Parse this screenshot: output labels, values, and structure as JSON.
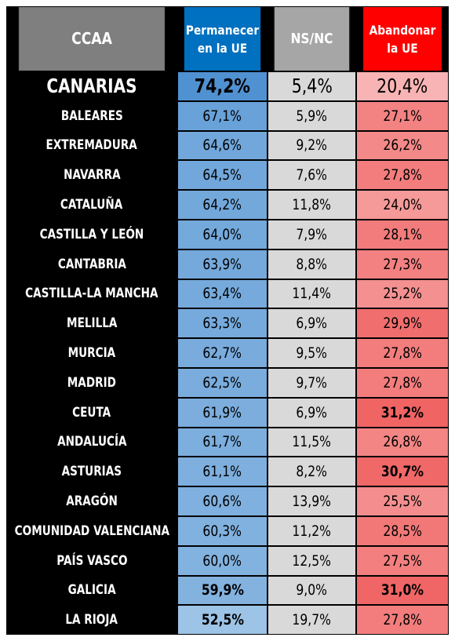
{
  "colors": {
    "header_ccaa": "#7f7f7f",
    "header_permanecer": "#0070c0",
    "header_nsnc": "#a6a6a6",
    "header_abandonar": "#ff0000",
    "name_column_bg": "#000000",
    "nsnc_cell_bg": "#d9d9d9"
  },
  "header": {
    "ccaa": "CCAA",
    "permanecer_line1": "Permanecer",
    "permanecer_line2": "en la UE",
    "nsnc": "NS/NC",
    "abandonar_line1": "Abandonar",
    "abandonar_line2": "la UE"
  },
  "chart_data": {
    "type": "table",
    "columns": [
      "CCAA",
      "Permanecer en la UE",
      "NS/NC",
      "Abandonar la UE"
    ],
    "rows": [
      {
        "ccaa": "CANARIAS",
        "permanecer": "74,2%",
        "nsnc": "5,4%",
        "abandonar": "20,4%",
        "perm_v": 74.2,
        "ab_v": 20.4,
        "bold_name": true,
        "bold_perm": true,
        "bold_ab": false
      },
      {
        "ccaa": "BALEARES",
        "permanecer": "67,1%",
        "nsnc": "5,9%",
        "abandonar": "27,1%",
        "perm_v": 67.1,
        "ab_v": 27.1,
        "bold_name": false,
        "bold_perm": false,
        "bold_ab": false
      },
      {
        "ccaa": "EXTREMADURA",
        "permanecer": "64,6%",
        "nsnc": "9,2%",
        "abandonar": "26,2%",
        "perm_v": 64.6,
        "ab_v": 26.2,
        "bold_name": false,
        "bold_perm": false,
        "bold_ab": false
      },
      {
        "ccaa": "NAVARRA",
        "permanecer": "64,5%",
        "nsnc": "7,6%",
        "abandonar": "27,8%",
        "perm_v": 64.5,
        "ab_v": 27.8,
        "bold_name": false,
        "bold_perm": false,
        "bold_ab": false
      },
      {
        "ccaa": "CATALUÑA",
        "permanecer": "64,2%",
        "nsnc": "11,8%",
        "abandonar": "24,0%",
        "perm_v": 64.2,
        "ab_v": 24.0,
        "bold_name": false,
        "bold_perm": false,
        "bold_ab": false
      },
      {
        "ccaa": "CASTILLA Y LEÓN",
        "permanecer": "64,0%",
        "nsnc": "7,9%",
        "abandonar": "28,1%",
        "perm_v": 64.0,
        "ab_v": 28.1,
        "bold_name": false,
        "bold_perm": false,
        "bold_ab": false
      },
      {
        "ccaa": "CANTABRIA",
        "permanecer": "63,9%",
        "nsnc": "8,8%",
        "abandonar": "27,3%",
        "perm_v": 63.9,
        "ab_v": 27.3,
        "bold_name": false,
        "bold_perm": false,
        "bold_ab": false
      },
      {
        "ccaa": "CASTILLA-LA MANCHA",
        "permanecer": "63,4%",
        "nsnc": "11,4%",
        "abandonar": "25,2%",
        "perm_v": 63.4,
        "ab_v": 25.2,
        "bold_name": false,
        "bold_perm": false,
        "bold_ab": false
      },
      {
        "ccaa": "MELILLA",
        "permanecer": "63,3%",
        "nsnc": "6,9%",
        "abandonar": "29,9%",
        "perm_v": 63.3,
        "ab_v": 29.9,
        "bold_name": false,
        "bold_perm": false,
        "bold_ab": false
      },
      {
        "ccaa": "MURCIA",
        "permanecer": "62,7%",
        "nsnc": "9,5%",
        "abandonar": "27,8%",
        "perm_v": 62.7,
        "ab_v": 27.8,
        "bold_name": false,
        "bold_perm": false,
        "bold_ab": false
      },
      {
        "ccaa": "MADRID",
        "permanecer": "62,5%",
        "nsnc": "9,7%",
        "abandonar": "27,8%",
        "perm_v": 62.5,
        "ab_v": 27.8,
        "bold_name": false,
        "bold_perm": false,
        "bold_ab": false
      },
      {
        "ccaa": "CEUTA",
        "permanecer": "61,9%",
        "nsnc": "6,9%",
        "abandonar": "31,2%",
        "perm_v": 61.9,
        "ab_v": 31.2,
        "bold_name": false,
        "bold_perm": false,
        "bold_ab": true
      },
      {
        "ccaa": "ANDALUCÍA",
        "permanecer": "61,7%",
        "nsnc": "11,5%",
        "abandonar": "26,8%",
        "perm_v": 61.7,
        "ab_v": 26.8,
        "bold_name": false,
        "bold_perm": false,
        "bold_ab": false
      },
      {
        "ccaa": "ASTURIAS",
        "permanecer": "61,1%",
        "nsnc": "8,2%",
        "abandonar": "30,7%",
        "perm_v": 61.1,
        "ab_v": 30.7,
        "bold_name": false,
        "bold_perm": false,
        "bold_ab": true
      },
      {
        "ccaa": "ARAGÓN",
        "permanecer": "60,6%",
        "nsnc": "13,9%",
        "abandonar": "25,5%",
        "perm_v": 60.6,
        "ab_v": 25.5,
        "bold_name": false,
        "bold_perm": false,
        "bold_ab": false
      },
      {
        "ccaa": "COMUNIDAD VALENCIANA",
        "permanecer": "60,3%",
        "nsnc": "11,2%",
        "abandonar": "28,5%",
        "perm_v": 60.3,
        "ab_v": 28.5,
        "bold_name": false,
        "bold_perm": false,
        "bold_ab": false
      },
      {
        "ccaa": "PAÍS VASCO",
        "permanecer": "60,0%",
        "nsnc": "12,5%",
        "abandonar": "27,5%",
        "perm_v": 60.0,
        "ab_v": 27.5,
        "bold_name": false,
        "bold_perm": false,
        "bold_ab": false
      },
      {
        "ccaa": "GALICIA",
        "permanecer": "59,9%",
        "nsnc": "9,0%",
        "abandonar": "31,0%",
        "perm_v": 59.9,
        "ab_v": 31.0,
        "bold_name": false,
        "bold_perm": true,
        "bold_ab": true
      },
      {
        "ccaa": "LA RIOJA",
        "permanecer": "52,5%",
        "nsnc": "19,7%",
        "abandonar": "27,8%",
        "perm_v": 52.5,
        "ab_v": 27.8,
        "bold_name": false,
        "bold_perm": true,
        "bold_ab": false
      }
    ]
  }
}
